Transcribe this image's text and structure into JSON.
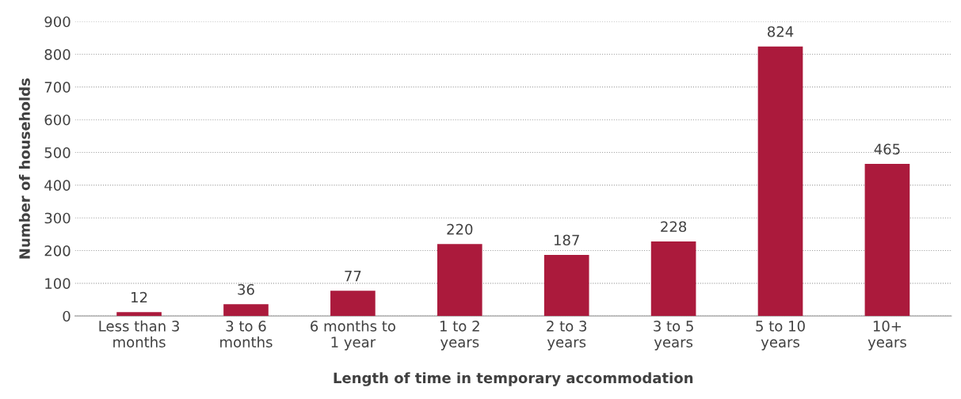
{
  "chart_data": {
    "type": "bar",
    "xlabel": "Length of time in temporary accommodation",
    "ylabel": "Number of households",
    "categories": [
      "Less than 3\nmonths",
      "3 to 6\nmonths",
      "6 months to\n1 year",
      "1 to 2\nyears",
      "2 to 3\nyears",
      "3 to 5\nyears",
      "5 to 10\nyears",
      "10+\nyears"
    ],
    "values": [
      12,
      36,
      77,
      220,
      187,
      228,
      824,
      465
    ],
    "color": "#ab1a3c",
    "ylim": [
      0,
      900
    ],
    "yticks": [
      0,
      100,
      200,
      300,
      400,
      500,
      600,
      700,
      800,
      900
    ],
    "grid": "y",
    "data_labels": true,
    "legend": false
  }
}
